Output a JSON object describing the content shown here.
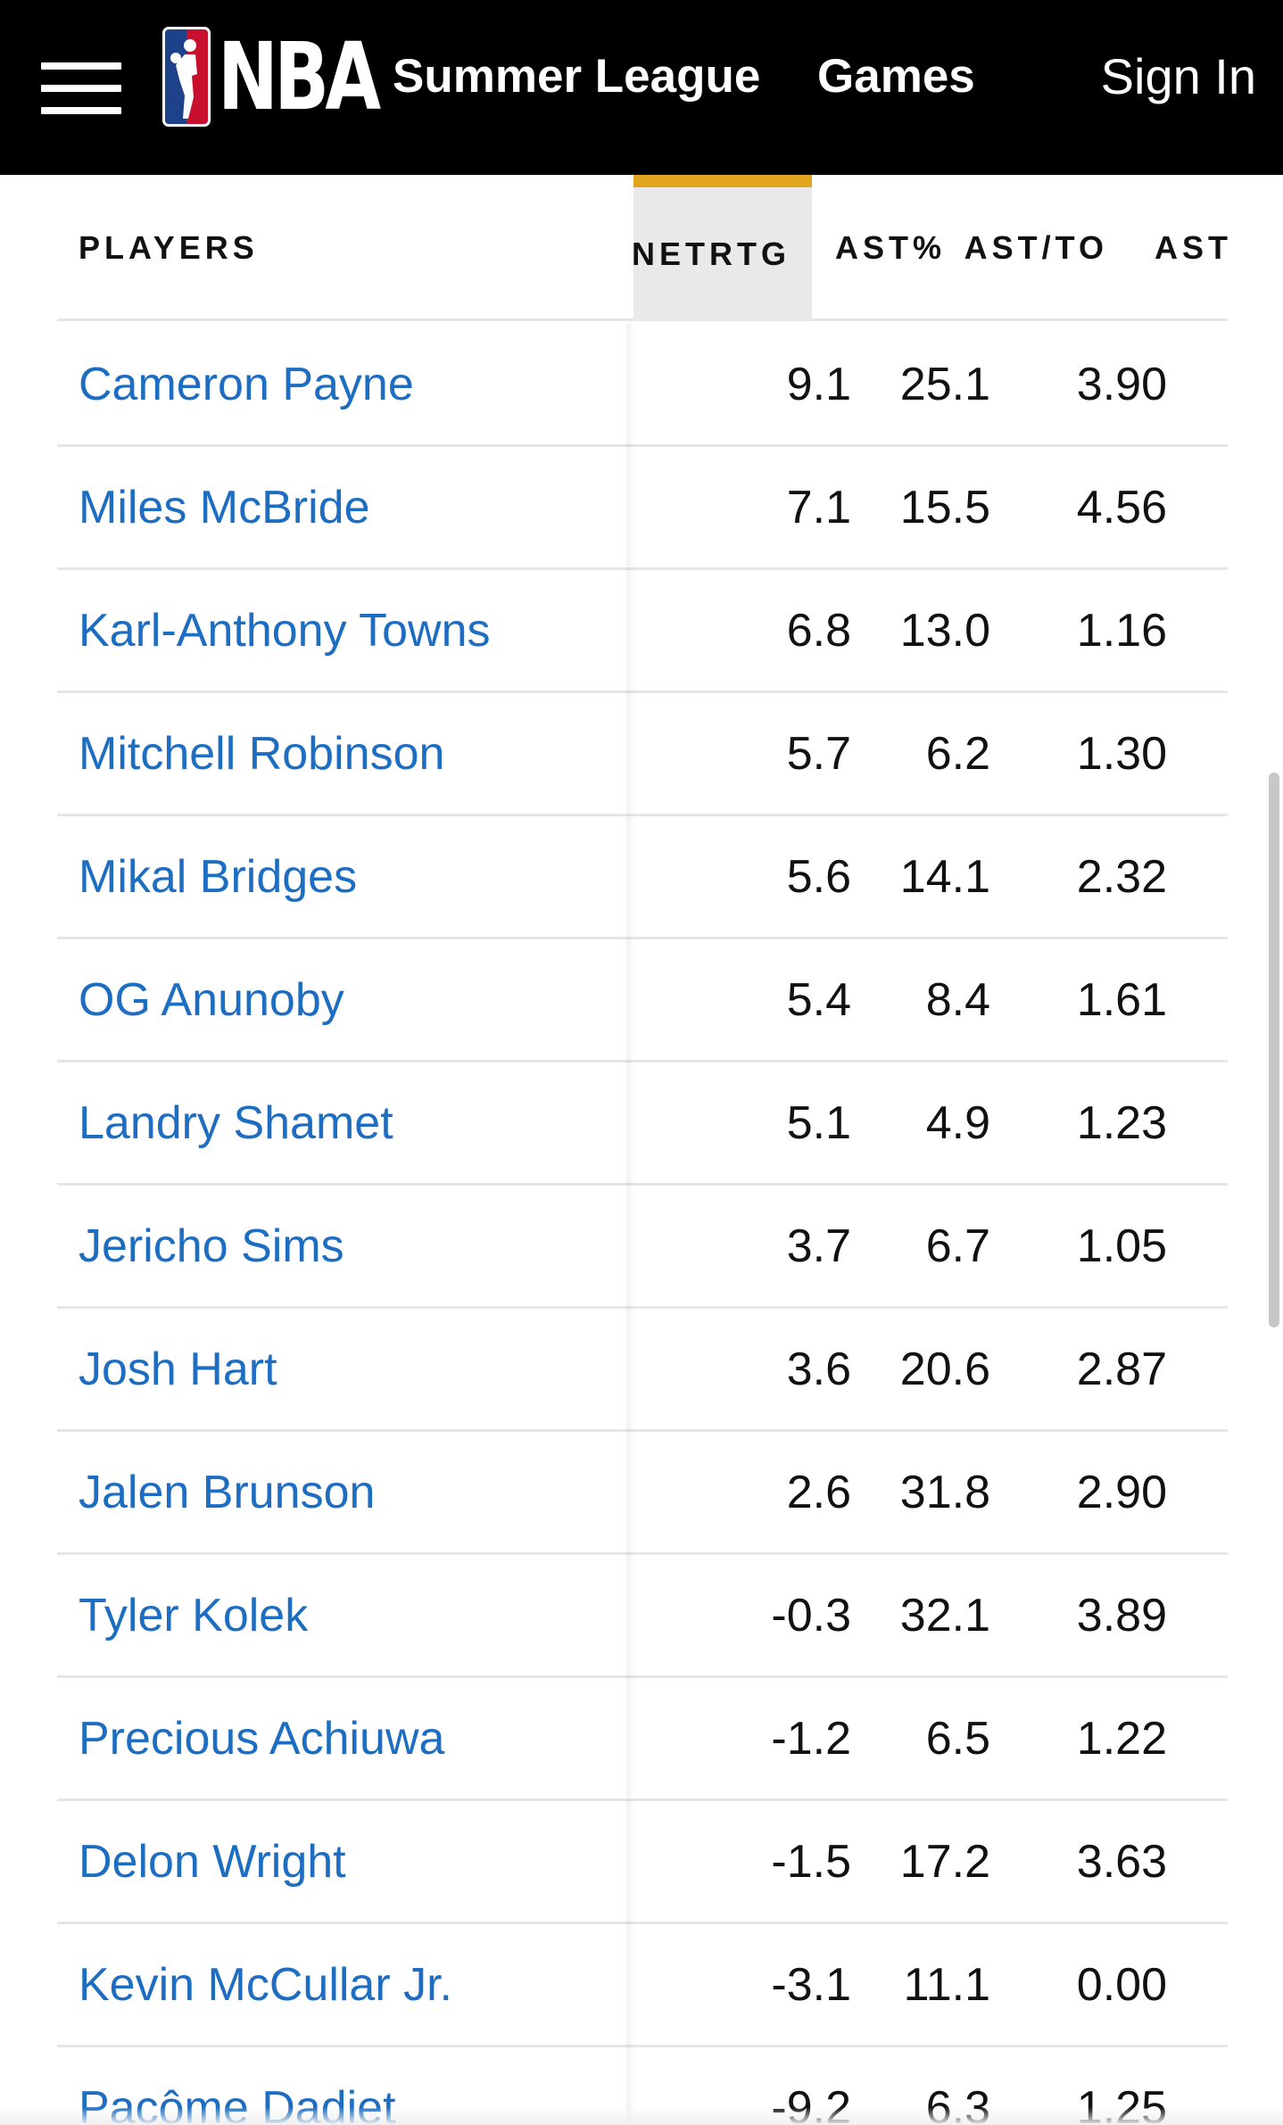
{
  "nav": {
    "logo_text": "NBA",
    "links": [
      "Summer League",
      "Games"
    ],
    "sign_in": "Sign In"
  },
  "table": {
    "columns": [
      "PLAYERS",
      "NETRTG",
      "AST%",
      "AST/TO",
      "AST"
    ],
    "active_column": "NETRTG",
    "rows": [
      {
        "player": "Cameron Payne",
        "netrtg": "9.1",
        "ast_pct": "25.1",
        "ast_to": "3.90"
      },
      {
        "player": "Miles McBride",
        "netrtg": "7.1",
        "ast_pct": "15.5",
        "ast_to": "4.56"
      },
      {
        "player": "Karl-Anthony Towns",
        "netrtg": "6.8",
        "ast_pct": "13.0",
        "ast_to": "1.16"
      },
      {
        "player": "Mitchell Robinson",
        "netrtg": "5.7",
        "ast_pct": "6.2",
        "ast_to": "1.30"
      },
      {
        "player": "Mikal Bridges",
        "netrtg": "5.6",
        "ast_pct": "14.1",
        "ast_to": "2.32"
      },
      {
        "player": "OG Anunoby",
        "netrtg": "5.4",
        "ast_pct": "8.4",
        "ast_to": "1.61"
      },
      {
        "player": "Landry Shamet",
        "netrtg": "5.1",
        "ast_pct": "4.9",
        "ast_to": "1.23"
      },
      {
        "player": "Jericho Sims",
        "netrtg": "3.7",
        "ast_pct": "6.7",
        "ast_to": "1.05"
      },
      {
        "player": "Josh Hart",
        "netrtg": "3.6",
        "ast_pct": "20.6",
        "ast_to": "2.87"
      },
      {
        "player": "Jalen Brunson",
        "netrtg": "2.6",
        "ast_pct": "31.8",
        "ast_to": "2.90"
      },
      {
        "player": "Tyler Kolek",
        "netrtg": "-0.3",
        "ast_pct": "32.1",
        "ast_to": "3.89"
      },
      {
        "player": "Precious Achiuwa",
        "netrtg": "-1.2",
        "ast_pct": "6.5",
        "ast_to": "1.22"
      },
      {
        "player": "Delon Wright",
        "netrtg": "-1.5",
        "ast_pct": "17.2",
        "ast_to": "3.63"
      },
      {
        "player": "Kevin McCullar Jr.",
        "netrtg": "-3.1",
        "ast_pct": "11.1",
        "ast_to": "0.00"
      },
      {
        "player": "Pacôme Dadiet",
        "netrtg": "-9.2",
        "ast_pct": "6.3",
        "ast_to": "1.25"
      }
    ]
  },
  "colors": {
    "nav_bg": "#000000",
    "link_blue": "#1d6ec2",
    "active_accent": "#e1a51e",
    "nba_blue": "#1d428a",
    "nba_red": "#c8102e"
  },
  "icons": [
    "hamburger-menu-icon",
    "nba-logo-icon"
  ]
}
